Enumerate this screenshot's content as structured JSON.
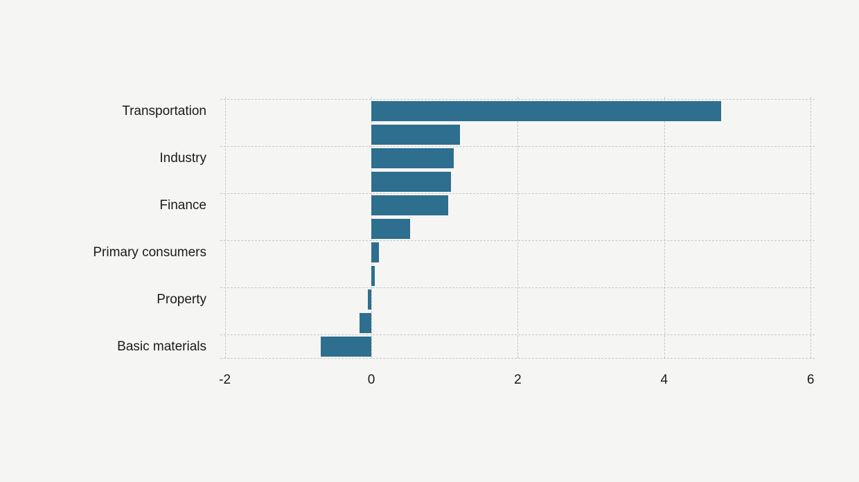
{
  "chart_data": {
    "type": "bar",
    "orientation": "horizontal",
    "title": "",
    "xlabel": "",
    "ylabel": "",
    "categories": [
      "Transportation",
      "",
      "Industry",
      "",
      "Finance",
      "",
      "Primary consumers",
      "",
      "Property",
      "",
      "Basic materials"
    ],
    "values": [
      4.78,
      1.21,
      1.13,
      1.09,
      1.05,
      0.53,
      0.1,
      0.05,
      -0.05,
      -0.16,
      -0.69
    ],
    "x_ticks": [
      -2,
      0,
      2,
      4,
      6
    ],
    "xlim": [
      -2.06,
      6.05
    ],
    "grid": "dashed",
    "legend": "none",
    "bar_color": "#2e6e8e",
    "background_color": "#f5f5f4",
    "gridline_color": "#c6c6c6",
    "text_color": "#1a1a1a"
  }
}
